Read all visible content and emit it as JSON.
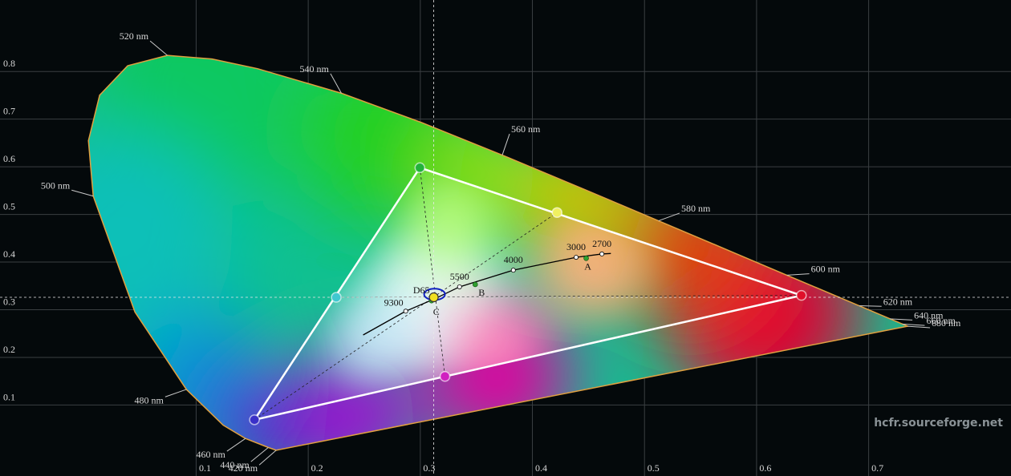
{
  "chart_data": {
    "type": "scatter",
    "xlim": [
      -0.075,
      0.827
    ],
    "ylim": [
      -0.049,
      0.95
    ],
    "xticks": [
      0.1,
      0.2,
      0.3,
      0.4,
      0.5,
      0.6,
      0.7
    ],
    "yticks": [
      0.1,
      0.2,
      0.3,
      0.4,
      0.5,
      0.6,
      0.7,
      0.8
    ],
    "grid": true,
    "locus": {
      "x": [
        0.1714,
        0.1644,
        0.144,
        0.1241,
        0.0913,
        0.0454,
        0.0082,
        0.0039,
        0.0139,
        0.0389,
        0.0743,
        0.1142,
        0.1547,
        0.2296,
        0.3016,
        0.3731,
        0.4441,
        0.5125,
        0.5752,
        0.627,
        0.6915,
        0.719,
        0.73,
        0.7347
      ],
      "y": [
        0.0051,
        0.0109,
        0.0297,
        0.0578,
        0.1327,
        0.295,
        0.5384,
        0.6548,
        0.7502,
        0.812,
        0.8338,
        0.8262,
        0.8059,
        0.7543,
        0.6923,
        0.6245,
        0.5547,
        0.4866,
        0.4242,
        0.3725,
        0.3083,
        0.2809,
        0.27,
        0.2653
      ],
      "labels": [
        "420 nm",
        "440 nm",
        "460 nm",
        null,
        "480 nm",
        null,
        "500 nm",
        null,
        null,
        null,
        "520 nm",
        null,
        null,
        "540 nm",
        null,
        "560 nm",
        null,
        "580 nm",
        null,
        "600 nm",
        "620 nm",
        "640 nm",
        "660 nm",
        "680 nm"
      ]
    },
    "primaries": {
      "x": [
        0.64,
        0.2996,
        0.152
      ],
      "y": [
        0.33,
        0.598,
        0.069
      ],
      "colors": [
        "#e0102a",
        "#22b33a",
        "#3a30c8"
      ]
    },
    "secondaries": {
      "x": [
        0.225,
        0.422,
        0.322
      ],
      "y": [
        0.326,
        0.504,
        0.16
      ],
      "colors": [
        "#40c8d0",
        "#f0f060",
        "#d020c0"
      ]
    },
    "white": {
      "x": 0.312,
      "y": 0.326,
      "color": "#f0e020"
    },
    "planck": {
      "x": [
        0.249,
        0.287,
        0.312,
        0.335,
        0.383,
        0.439,
        0.462,
        0.47
      ],
      "y": [
        0.247,
        0.297,
        0.322,
        0.348,
        0.383,
        0.41,
        0.417,
        0.418
      ],
      "cct": [
        null,
        9300,
        null,
        5500,
        4000,
        3000,
        2700,
        null
      ]
    },
    "illuminants": {
      "labels": [
        "A",
        "B",
        "C",
        "D65"
      ],
      "x": [
        0.448,
        0.349,
        0.31,
        0.3127
      ],
      "y": [
        0.408,
        0.353,
        0.319,
        0.329
      ]
    },
    "watermark": "hcfr.sourceforge.net"
  }
}
